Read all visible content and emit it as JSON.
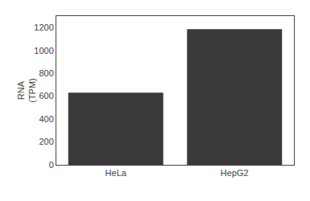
{
  "chart_data": {
    "type": "bar",
    "categories": [
      "HeLa",
      "HepG2"
    ],
    "values": [
      630,
      1185
    ],
    "color": "#3a3a3a",
    "ylabel": "RNA\n(TPM)",
    "ylim": [
      0,
      1300
    ],
    "yticks": [
      0,
      200,
      400,
      600,
      800,
      1000,
      1200
    ],
    "grid": false
  }
}
